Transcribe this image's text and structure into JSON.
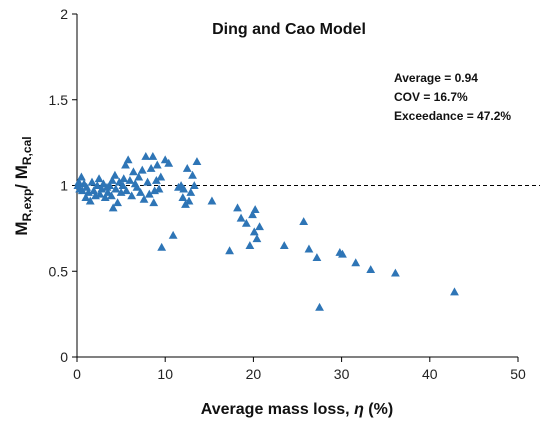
{
  "chart_data": {
    "type": "scatter",
    "title": "Ding and Cao Model",
    "xlabel": "Average mass loss, ",
    "xlabel_symbol": "η",
    "xlabel_unit": " (%)",
    "ylabel": {
      "main1": "M",
      "sub1": "R,exp",
      "sep": "/ ",
      "main2": "M",
      "sub2": "R,cal"
    },
    "xlim": [
      0,
      50
    ],
    "ylim": [
      0,
      2
    ],
    "x_ticks": [
      "0",
      "10",
      "20",
      "30",
      "40",
      "50"
    ],
    "y_ticks": [
      "0",
      "0.5",
      "1",
      "1.5",
      "2"
    ],
    "reference_line": {
      "y": 1,
      "style": "dashed"
    },
    "stats": [
      "Average = 0.94",
      "COV = 16.7%",
      "Exceedance = 47.2%"
    ],
    "marker": {
      "shape": "triangle",
      "color": "#2E75B6"
    },
    "points": [
      [
        0.1,
        1.0
      ],
      [
        0.2,
        1.02
      ],
      [
        0.3,
        0.98
      ],
      [
        0.5,
        1.05
      ],
      [
        0.6,
        0.97
      ],
      [
        0.8,
        1.01
      ],
      [
        1.0,
        0.93
      ],
      [
        1.1,
        0.99
      ],
      [
        1.3,
        0.96
      ],
      [
        1.5,
        0.91
      ],
      [
        1.7,
        1.02
      ],
      [
        1.9,
        0.97
      ],
      [
        2.1,
        0.94
      ],
      [
        2.3,
        1.0
      ],
      [
        2.5,
        1.04
      ],
      [
        2.6,
        0.95
      ],
      [
        2.8,
        0.98
      ],
      [
        3.0,
        1.01
      ],
      [
        3.2,
        0.93
      ],
      [
        3.4,
        0.99
      ],
      [
        3.5,
        0.96
      ],
      [
        3.7,
        1.0
      ],
      [
        3.9,
        0.94
      ],
      [
        4.0,
        1.03
      ],
      [
        4.1,
        0.87
      ],
      [
        4.3,
        1.06
      ],
      [
        4.4,
        0.98
      ],
      [
        4.6,
        0.9
      ],
      [
        4.8,
        1.02
      ],
      [
        5.0,
        0.96
      ],
      [
        5.2,
        1.0
      ],
      [
        5.3,
        1.04
      ],
      [
        5.5,
        1.12
      ],
      [
        5.6,
        0.97
      ],
      [
        5.8,
        1.15
      ],
      [
        6.0,
        1.03
      ],
      [
        6.2,
        0.94
      ],
      [
        6.4,
        1.08
      ],
      [
        6.6,
        1.01
      ],
      [
        6.8,
        0.99
      ],
      [
        7.0,
        1.05
      ],
      [
        7.2,
        0.96
      ],
      [
        7.4,
        1.09
      ],
      [
        7.6,
        0.92
      ],
      [
        7.8,
        1.17
      ],
      [
        8.0,
        1.02
      ],
      [
        8.2,
        0.95
      ],
      [
        8.4,
        1.1
      ],
      [
        8.6,
        1.17
      ],
      [
        8.7,
        0.9
      ],
      [
        8.8,
        0.97
      ],
      [
        9.0,
        1.03
      ],
      [
        9.1,
        1.12
      ],
      [
        9.3,
        0.98
      ],
      [
        9.5,
        1.05
      ],
      [
        9.6,
        0.64
      ],
      [
        10.0,
        1.15
      ],
      [
        10.4,
        1.13
      ],
      [
        10.9,
        0.71
      ],
      [
        11.5,
        0.99
      ],
      [
        11.8,
        1.0
      ],
      [
        12.0,
        0.93
      ],
      [
        12.1,
        0.98
      ],
      [
        12.3,
        0.89
      ],
      [
        12.5,
        1.1
      ],
      [
        12.7,
        0.91
      ],
      [
        12.9,
        0.96
      ],
      [
        13.1,
        1.06
      ],
      [
        13.3,
        1.0
      ],
      [
        13.6,
        1.14
      ],
      [
        15.3,
        0.91
      ],
      [
        17.3,
        0.62
      ],
      [
        18.2,
        0.87
      ],
      [
        18.6,
        0.81
      ],
      [
        19.2,
        0.78
      ],
      [
        19.6,
        0.65
      ],
      [
        19.9,
        0.83
      ],
      [
        20.1,
        0.73
      ],
      [
        20.2,
        0.86
      ],
      [
        20.4,
        0.69
      ],
      [
        20.7,
        0.76
      ],
      [
        23.5,
        0.65
      ],
      [
        25.7,
        0.79
      ],
      [
        26.3,
        0.63
      ],
      [
        27.2,
        0.58
      ],
      [
        27.5,
        0.29
      ],
      [
        29.8,
        0.61
      ],
      [
        30.1,
        0.6
      ],
      [
        31.6,
        0.55
      ],
      [
        33.3,
        0.51
      ],
      [
        36.1,
        0.49
      ],
      [
        42.8,
        0.38
      ]
    ]
  }
}
